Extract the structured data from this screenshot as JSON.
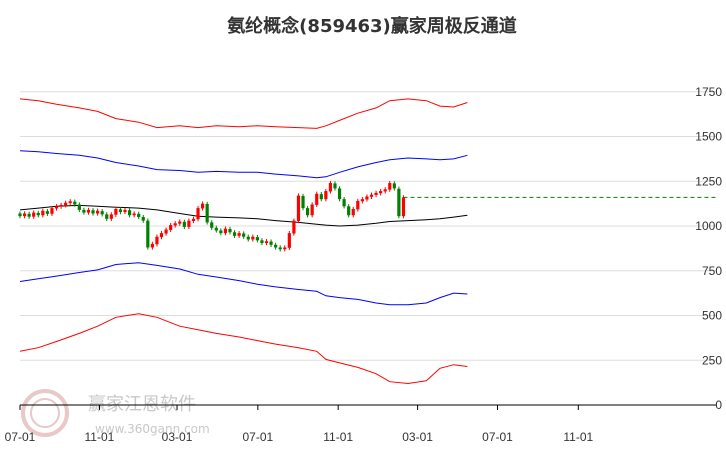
{
  "chart_data": {
    "type": "line",
    "title": "氨纶概念(859463)赢家周极反通道",
    "y_ticks": [
      "1750",
      "1500",
      "1250",
      "1000",
      "750",
      "500",
      "250",
      "0"
    ],
    "y_tick_values": [
      1750,
      1500,
      1250,
      1000,
      750,
      500,
      250,
      0
    ],
    "x_ticks": [
      "07-01",
      "11-01",
      "03-01",
      "07-01",
      "11-01",
      "03-01",
      "07-01",
      "11-01"
    ],
    "x_tick_values": [
      0,
      17.4,
      34.4,
      52.1,
      69.7,
      87.1,
      104.6,
      122.3
    ],
    "ylim": [
      0,
      1820
    ],
    "grid": "horizontal",
    "last_close": 1160,
    "colors": {
      "outer": "#ff0000",
      "inner": "#0000ff",
      "mid": "#000000",
      "up": "#ff0000",
      "down": "#008000",
      "last": "#008000",
      "grid": "#dddddd"
    },
    "watermark": {
      "name": "赢家江恩软件",
      "url": "www.360gann.com"
    },
    "series": [
      {
        "key": "upper_outer",
        "x": [
          0,
          4,
          8,
          13,
          17,
          21,
          26,
          30,
          35,
          39,
          43,
          48,
          52,
          56,
          61,
          65,
          67,
          70,
          74,
          78,
          81,
          85,
          89,
          92,
          95,
          98
        ],
        "values": [
          1710,
          1700,
          1680,
          1660,
          1640,
          1600,
          1580,
          1550,
          1560,
          1550,
          1560,
          1555,
          1560,
          1555,
          1550,
          1545,
          1560,
          1590,
          1630,
          1660,
          1700,
          1710,
          1700,
          1670,
          1665,
          1690
        ]
      },
      {
        "key": "upper_inner",
        "x": [
          0,
          4,
          8,
          13,
          17,
          21,
          26,
          30,
          35,
          39,
          43,
          48,
          52,
          56,
          61,
          65,
          67,
          70,
          74,
          78,
          81,
          85,
          89,
          92,
          95,
          98
        ],
        "values": [
          1420,
          1415,
          1405,
          1395,
          1380,
          1355,
          1335,
          1315,
          1310,
          1300,
          1305,
          1300,
          1300,
          1290,
          1280,
          1270,
          1275,
          1300,
          1330,
          1355,
          1370,
          1380,
          1375,
          1370,
          1375,
          1395
        ]
      },
      {
        "key": "middle",
        "x": [
          0,
          4,
          8,
          13,
          17,
          21,
          26,
          30,
          35,
          39,
          43,
          48,
          52,
          56,
          61,
          65,
          67,
          70,
          74,
          78,
          81,
          85,
          89,
          92,
          95,
          98
        ],
        "values": [
          1090,
          1100,
          1110,
          1115,
          1110,
          1105,
          1100,
          1090,
          1070,
          1055,
          1050,
          1045,
          1040,
          1030,
          1020,
          1010,
          1005,
          1000,
          1005,
          1015,
          1025,
          1030,
          1035,
          1040,
          1050,
          1060
        ]
      },
      {
        "key": "lower_inner",
        "x": [
          0,
          4,
          8,
          13,
          17,
          21,
          26,
          30,
          35,
          39,
          43,
          48,
          52,
          56,
          61,
          65,
          67,
          70,
          74,
          78,
          81,
          85,
          89,
          92,
          95,
          98
        ],
        "values": [
          690,
          705,
          720,
          740,
          755,
          785,
          795,
          780,
          760,
          730,
          715,
          695,
          675,
          660,
          645,
          635,
          610,
          600,
          590,
          570,
          560,
          560,
          570,
          600,
          625,
          620
        ]
      },
      {
        "key": "lower_outer",
        "x": [
          0,
          4,
          8,
          13,
          17,
          21,
          26,
          30,
          35,
          39,
          43,
          48,
          52,
          56,
          61,
          65,
          67,
          70,
          74,
          78,
          81,
          85,
          89,
          92,
          95,
          98
        ],
        "values": [
          300,
          320,
          355,
          400,
          440,
          490,
          510,
          490,
          440,
          420,
          400,
          380,
          360,
          340,
          320,
          300,
          255,
          235,
          210,
          175,
          130,
          120,
          135,
          205,
          225,
          215
        ]
      }
    ],
    "candles": [
      [
        0,
        1070,
        1055
      ],
      [
        1,
        1055,
        1070
      ],
      [
        2,
        1068,
        1052
      ],
      [
        3,
        1052,
        1075
      ],
      [
        4,
        1073,
        1060
      ],
      [
        5,
        1060,
        1085
      ],
      [
        6,
        1083,
        1068
      ],
      [
        7,
        1068,
        1100
      ],
      [
        8,
        1098,
        1110
      ],
      [
        9,
        1108,
        1118
      ],
      [
        10,
        1116,
        1130
      ],
      [
        11,
        1128,
        1138
      ],
      [
        12,
        1136,
        1120
      ],
      [
        13,
        1120,
        1090
      ],
      [
        14,
        1090,
        1075
      ],
      [
        15,
        1075,
        1090
      ],
      [
        16,
        1088,
        1070
      ],
      [
        17,
        1070,
        1085
      ],
      [
        18,
        1083,
        1065
      ],
      [
        19,
        1065,
        1040
      ],
      [
        20,
        1040,
        1065
      ],
      [
        21,
        1063,
        1095
      ],
      [
        22,
        1093,
        1078
      ],
      [
        23,
        1078,
        1090
      ],
      [
        24,
        1088,
        1060
      ],
      [
        25,
        1060,
        1070
      ],
      [
        26,
        1068,
        1050
      ],
      [
        27,
        1050,
        1030
      ],
      [
        28,
        1030,
        880
      ],
      [
        29,
        880,
        900
      ],
      [
        30,
        898,
        940
      ],
      [
        31,
        938,
        960
      ],
      [
        32,
        958,
        980
      ],
      [
        33,
        978,
        1005
      ],
      [
        34,
        1003,
        1015
      ],
      [
        35,
        1013,
        1025
      ],
      [
        36,
        1023,
        995
      ],
      [
        37,
        995,
        1030
      ],
      [
        38,
        1028,
        1040
      ],
      [
        39,
        1038,
        1100
      ],
      [
        40,
        1098,
        1125
      ],
      [
        41,
        1123,
        1020
      ],
      [
        42,
        1020,
        990
      ],
      [
        43,
        990,
        975
      ],
      [
        44,
        975,
        960
      ],
      [
        45,
        960,
        985
      ],
      [
        46,
        983,
        965
      ],
      [
        47,
        965,
        945
      ],
      [
        48,
        945,
        960
      ],
      [
        49,
        958,
        940
      ],
      [
        50,
        940,
        925
      ],
      [
        51,
        925,
        940
      ],
      [
        52,
        938,
        920
      ],
      [
        53,
        920,
        905
      ],
      [
        54,
        905,
        915
      ],
      [
        55,
        913,
        895
      ],
      [
        56,
        895,
        880
      ],
      [
        57,
        880,
        870
      ],
      [
        58,
        870,
        880
      ],
      [
        59,
        878,
        960
      ],
      [
        60,
        958,
        1030
      ],
      [
        61,
        1028,
        1170
      ],
      [
        62,
        1168,
        1100
      ],
      [
        63,
        1100,
        1060
      ],
      [
        64,
        1060,
        1120
      ],
      [
        65,
        1118,
        1180
      ],
      [
        66,
        1178,
        1150
      ],
      [
        67,
        1150,
        1195
      ],
      [
        68,
        1193,
        1240
      ],
      [
        69,
        1238,
        1210
      ],
      [
        70,
        1210,
        1150
      ],
      [
        71,
        1150,
        1110
      ],
      [
        72,
        1110,
        1060
      ],
      [
        73,
        1060,
        1095
      ],
      [
        74,
        1093,
        1140
      ],
      [
        75,
        1138,
        1150
      ],
      [
        76,
        1148,
        1165
      ],
      [
        77,
        1163,
        1175
      ],
      [
        78,
        1173,
        1185
      ],
      [
        79,
        1183,
        1195
      ],
      [
        80,
        1193,
        1205
      ],
      [
        81,
        1203,
        1240
      ],
      [
        82,
        1238,
        1210
      ],
      [
        83,
        1208,
        1055
      ],
      [
        84,
        1055,
        1160
      ]
    ]
  }
}
